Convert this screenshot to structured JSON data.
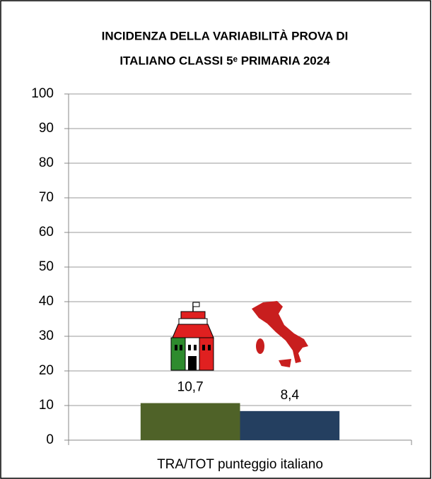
{
  "chart_data": {
    "type": "bar",
    "title": [
      "INCIDENZA DELLA VARIABILITÀ PROVA DI",
      "ITALIANO CLASSI 5ᵉ PRIMARIA 2024"
    ],
    "categories": [
      "TRA/TOT punteggio italiano"
    ],
    "series": [
      {
        "color": "#4f6228",
        "values": [
          10.7
        ],
        "value_labels": [
          "10,7"
        ]
      },
      {
        "color": "#243f60",
        "values": [
          8.4
        ],
        "value_labels": [
          "8,4"
        ]
      }
    ],
    "ylim": [
      0,
      100
    ],
    "yticks": [
      0,
      10,
      20,
      30,
      40,
      50,
      60,
      70,
      80,
      90,
      100
    ],
    "grid": true
  }
}
